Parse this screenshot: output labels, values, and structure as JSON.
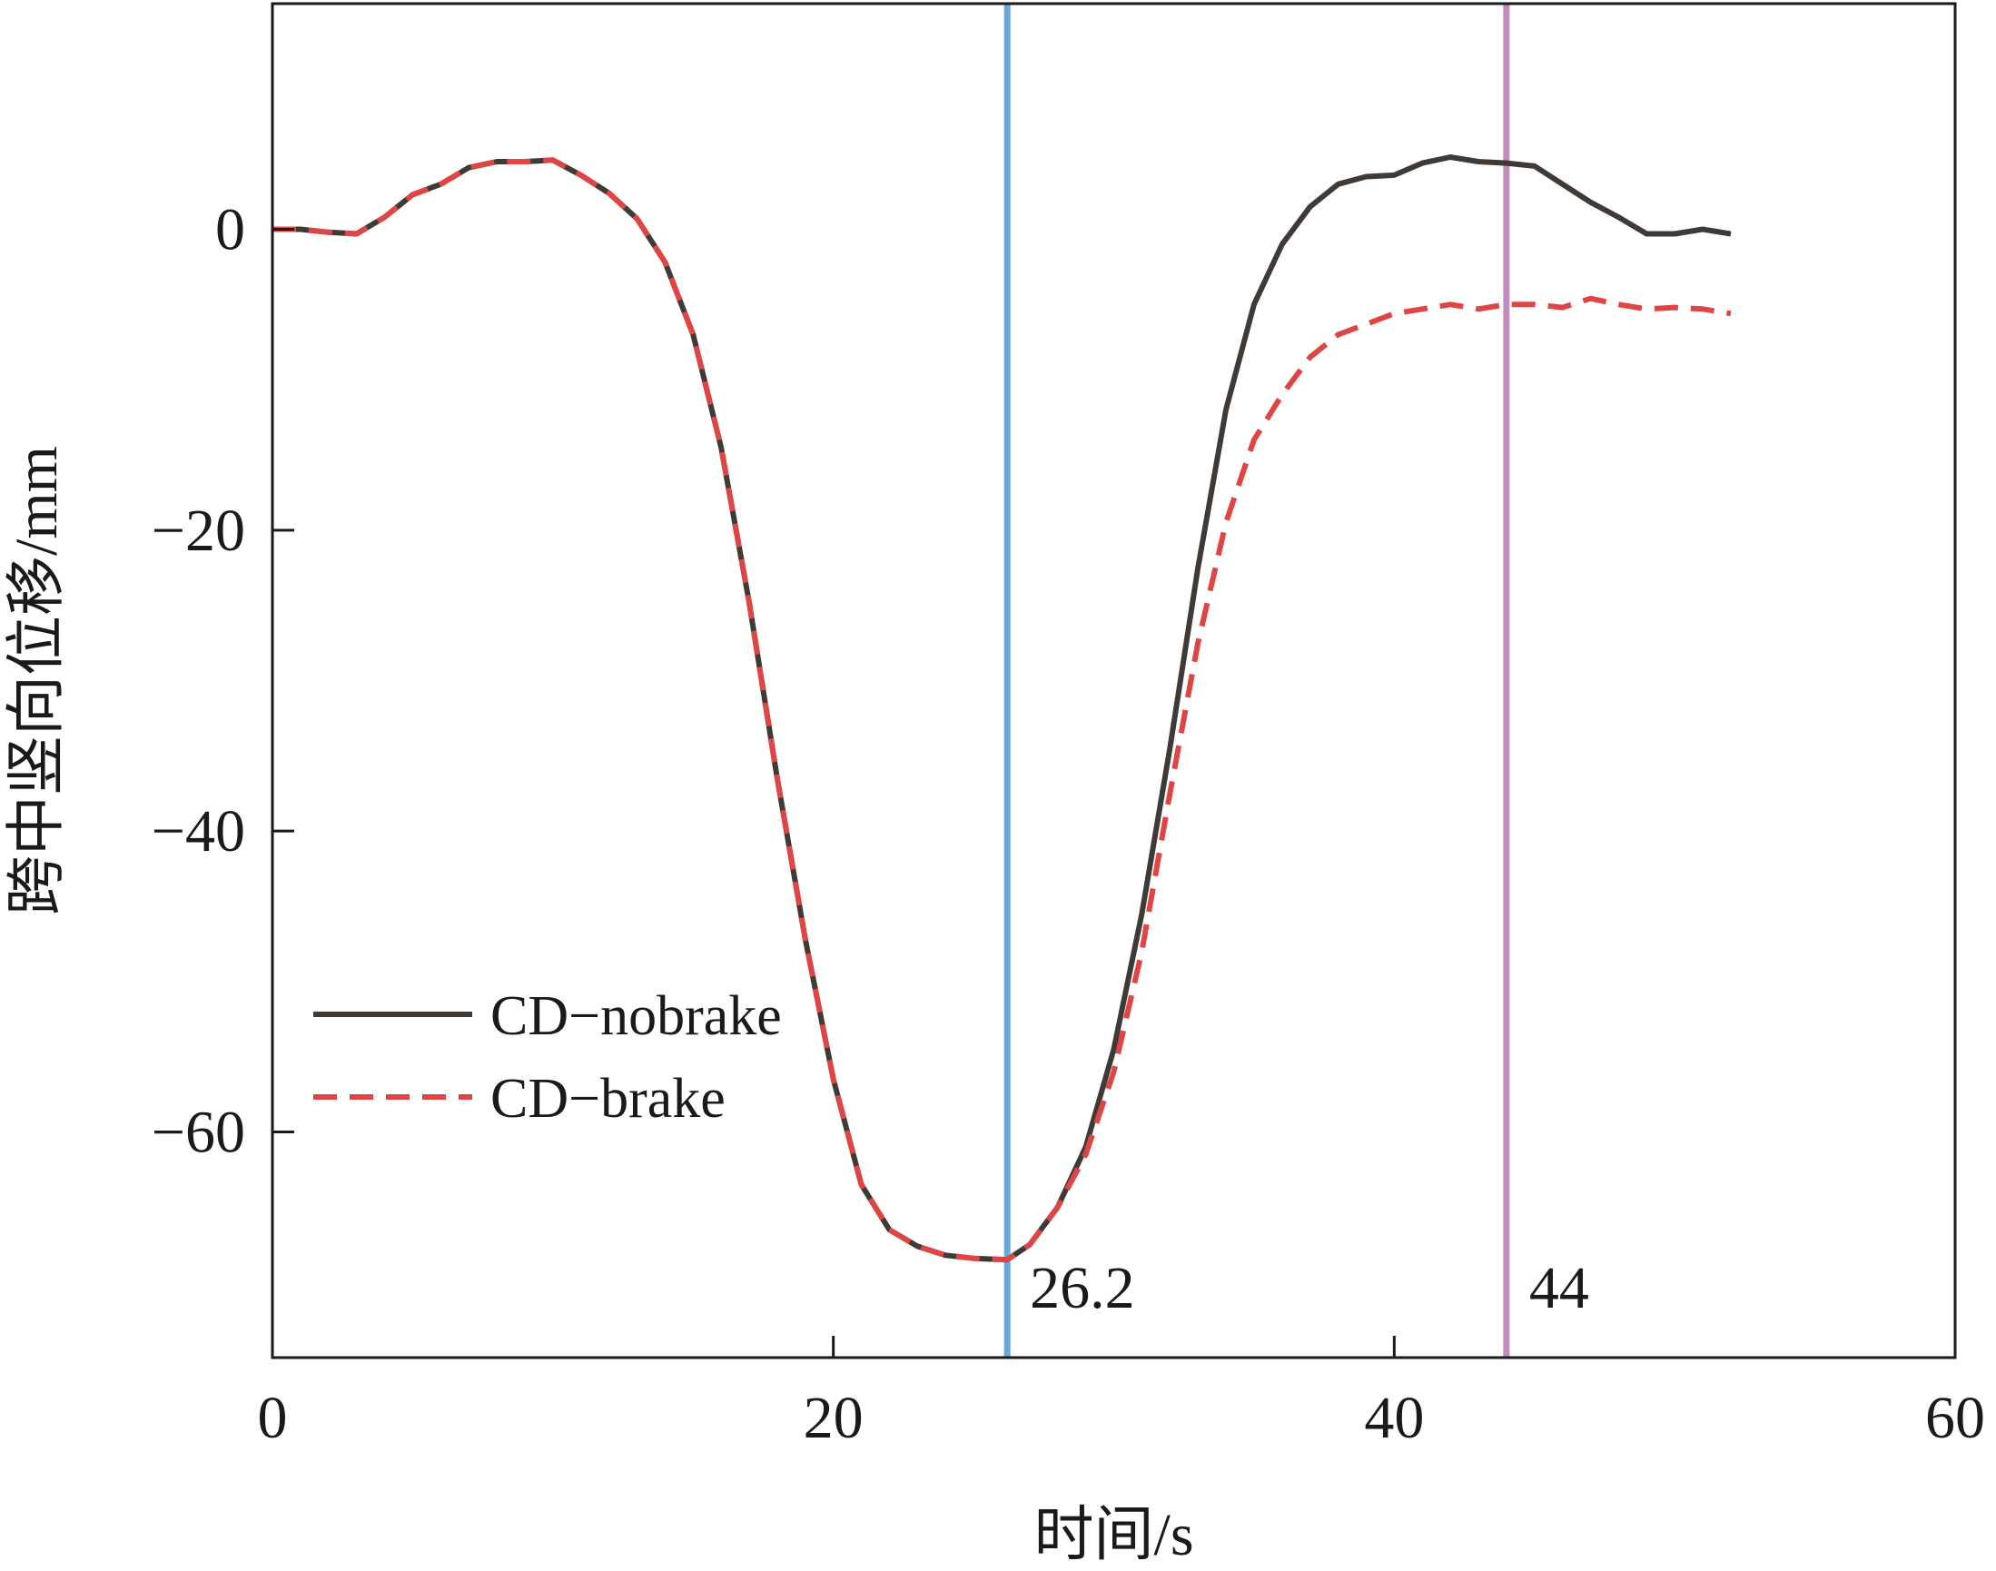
{
  "chart_data": {
    "type": "line",
    "title": "",
    "xlabel": "时间/s",
    "ylabel": "跨中竖向位移/mm",
    "xlim": [
      0,
      60
    ],
    "ylim": [
      -75,
      15
    ],
    "xticks": [
      0,
      20,
      40,
      60
    ],
    "yticks": [
      0,
      -20,
      -40,
      -60
    ],
    "xtick_labels": [
      "0",
      "20",
      "40",
      "60"
    ],
    "ytick_labels": [
      "0",
      "−20",
      "−40",
      "−60"
    ],
    "grid": false,
    "legend_position": "lower-left",
    "series": [
      {
        "name": "CD−nobrake",
        "color": "#3f3a36",
        "style": "solid",
        "x": [
          0,
          1,
          2,
          3,
          4,
          5,
          6,
          7,
          7.5,
          8,
          9,
          10,
          11,
          12,
          13,
          14,
          15,
          16,
          17,
          18,
          19,
          20,
          21,
          22,
          23,
          24,
          25,
          26.2,
          27,
          28,
          29,
          30,
          31,
          32,
          33,
          34,
          35,
          36,
          37,
          38,
          39,
          40,
          41,
          42,
          43,
          44,
          45,
          46,
          47,
          48,
          49,
          50,
          51,
          52
        ],
        "y": [
          0,
          0,
          -0.2,
          -0.3,
          0.8,
          2.3,
          3.0,
          4.1,
          4.3,
          4.5,
          4.5,
          4.6,
          3.6,
          2.4,
          0.7,
          -2.2,
          -7.0,
          -14.5,
          -24.8,
          -36.5,
          -47.2,
          -56.5,
          -63.5,
          -66.5,
          -67.6,
          -68.2,
          -68.4,
          -68.5,
          -67.5,
          -65.0,
          -61.0,
          -54.5,
          -45.5,
          -34.5,
          -22.5,
          -12.0,
          -5.0,
          -1.0,
          1.5,
          3.0,
          3.5,
          3.6,
          4.4,
          4.8,
          4.5,
          4.4,
          4.2,
          3.0,
          1.8,
          0.8,
          -0.3,
          -0.3,
          0.0,
          -0.3
        ]
      },
      {
        "name": "CD−brake",
        "color": "#e04545",
        "style": "dashed",
        "x": [
          0,
          1,
          2,
          3,
          4,
          5,
          6,
          7,
          7.5,
          8,
          9,
          10,
          11,
          12,
          13,
          14,
          15,
          16,
          17,
          18,
          19,
          20,
          21,
          22,
          23,
          24,
          25,
          26.2,
          27,
          28,
          29,
          30,
          31,
          32,
          33,
          34,
          35,
          36,
          37,
          38,
          39,
          40,
          41,
          42,
          43,
          44,
          45,
          46,
          47,
          48,
          49,
          50,
          51,
          52
        ],
        "y": [
          0,
          0,
          -0.2,
          -0.3,
          0.8,
          2.3,
          3.0,
          4.1,
          4.3,
          4.5,
          4.5,
          4.6,
          3.6,
          2.4,
          0.7,
          -2.2,
          -7.0,
          -14.5,
          -24.8,
          -36.5,
          -47.2,
          -56.5,
          -63.5,
          -66.5,
          -67.6,
          -68.2,
          -68.4,
          -68.5,
          -67.5,
          -65.0,
          -61.5,
          -56.0,
          -48.0,
          -37.5,
          -27.5,
          -19.5,
          -14.0,
          -11.0,
          -8.5,
          -7.0,
          -6.3,
          -5.6,
          -5.3,
          -5.0,
          -5.3,
          -5.0,
          -5.0,
          -5.2,
          -4.6,
          -5.0,
          -5.3,
          -5.2,
          -5.3,
          -5.6
        ]
      }
    ],
    "vlines": [
      {
        "x": 26.2,
        "label": "26.2",
        "color": "#6aa8d6"
      },
      {
        "x": 44,
        "label": "44",
        "color": "#c48bbd"
      }
    ]
  }
}
